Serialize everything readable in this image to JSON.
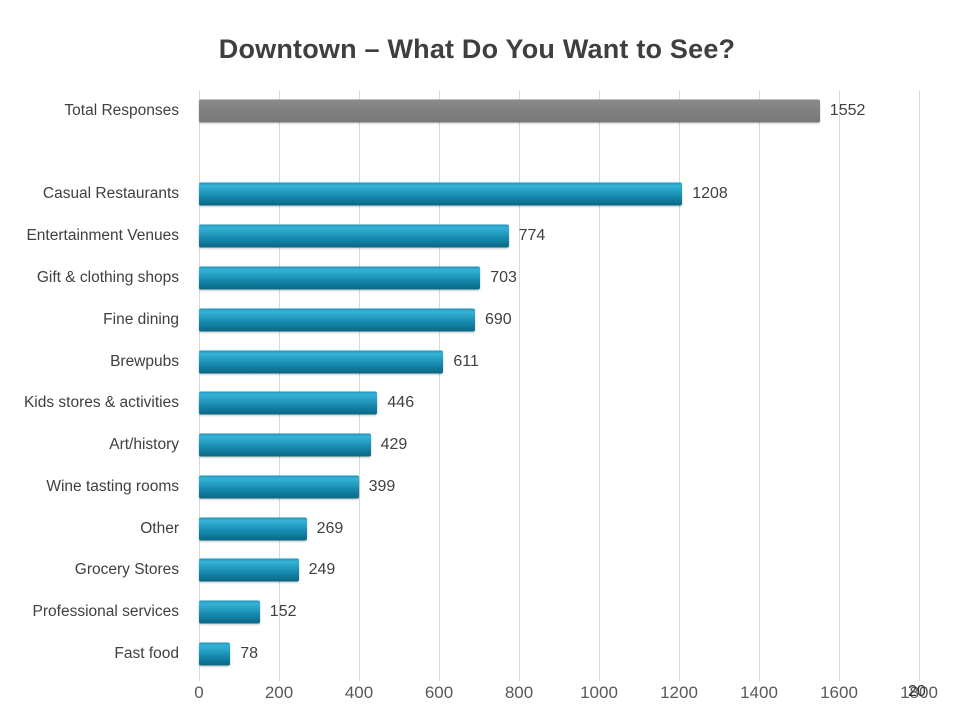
{
  "page_number": "20",
  "chart_data": {
    "type": "bar",
    "orientation": "horizontal",
    "title": "Downtown – What Do You Want to See?",
    "xlabel": "",
    "ylabel": "",
    "xlim": [
      0,
      1800
    ],
    "xtick_step": 200,
    "xticks": [
      0,
      200,
      400,
      600,
      800,
      1000,
      1200,
      1400,
      1600,
      1800
    ],
    "grid": "vertical",
    "legend": "none",
    "categories": [
      "Total Responses",
      "Casual Restaurants",
      "Entertainment Venues",
      "Gift & clothing shops",
      "Fine dining",
      "Brewpubs",
      "Kids stores & activities",
      "Art/history",
      "Wine tasting rooms",
      "Other",
      "Grocery Stores",
      "Professional services",
      "Fast food"
    ],
    "values": [
      1552,
      1208,
      774,
      703,
      690,
      611,
      446,
      429,
      399,
      269,
      249,
      152,
      78
    ],
    "bars": [
      {
        "label": "Total Responses",
        "value": 1552,
        "style": "total"
      },
      {
        "label": "",
        "value": null,
        "style": "spacer"
      },
      {
        "label": "Casual Restaurants",
        "value": 1208,
        "style": "teal"
      },
      {
        "label": "Entertainment Venues",
        "value": 774,
        "style": "teal"
      },
      {
        "label": "Gift & clothing shops",
        "value": 703,
        "style": "teal"
      },
      {
        "label": "Fine dining",
        "value": 690,
        "style": "teal"
      },
      {
        "label": "Brewpubs",
        "value": 611,
        "style": "teal"
      },
      {
        "label": "Kids stores & activities",
        "value": 446,
        "style": "teal"
      },
      {
        "label": "Art/history",
        "value": 429,
        "style": "teal"
      },
      {
        "label": "Wine tasting rooms",
        "value": 399,
        "style": "teal"
      },
      {
        "label": "Other",
        "value": 269,
        "style": "teal"
      },
      {
        "label": "Grocery Stores",
        "value": 249,
        "style": "teal"
      },
      {
        "label": "Professional services",
        "value": 152,
        "style": "teal"
      },
      {
        "label": "Fast food",
        "value": 78,
        "style": "teal"
      }
    ],
    "colors": {
      "bar_teal": "#1587ab",
      "bar_teal_light": "#35b2d7",
      "bar_teal_dark": "#0a6785",
      "bar_total_gray": "#7f7f7f",
      "gridline": "#d9d9d9",
      "title_text": "#3f3f3f",
      "label_text": "#404040",
      "axis_text": "#595959",
      "background": "#ffffff"
    }
  }
}
